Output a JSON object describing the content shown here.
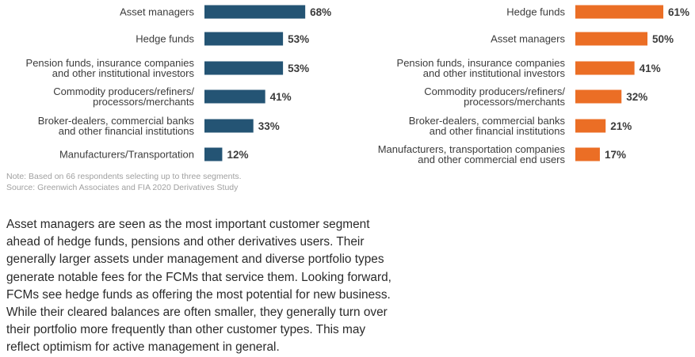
{
  "chart_data": [
    {
      "type": "bar",
      "orientation": "horizontal",
      "color": "#245474",
      "categories": [
        [
          "Asset managers"
        ],
        [
          "Hedge funds"
        ],
        [
          "Pension funds, insurance companies",
          "and other institutional investors"
        ],
        [
          "Commodity producers/refiners/",
          "processors/merchants"
        ],
        [
          "Broker-dealers, commercial banks",
          "and other financial institutions"
        ],
        [
          "Manufacturers/Transportation"
        ]
      ],
      "values": [
        68,
        53,
        53,
        41,
        33,
        12
      ],
      "value_labels": [
        "68%",
        "53%",
        "53%",
        "41%",
        "33%",
        "12%"
      ]
    },
    {
      "type": "bar",
      "orientation": "horizontal",
      "color": "#eb6e25",
      "categories": [
        [
          "Hedge funds"
        ],
        [
          "Asset managers"
        ],
        [
          "Pension funds, insurance companies",
          "and other institutional investors"
        ],
        [
          "Commodity producers/refiners/",
          "processors/merchants"
        ],
        [
          "Broker-dealers, commercial banks",
          "and other financial institutions"
        ],
        [
          "Manufacturers, transportation companies",
          "and other commercial end users"
        ]
      ],
      "values": [
        61,
        50,
        41,
        32,
        21,
        17
      ],
      "value_labels": [
        "61%",
        "50%",
        "41%",
        "32%",
        "21%",
        "17%"
      ]
    }
  ],
  "notes": {
    "note": "Note: Based on 66 respondents selecting up to three segments.",
    "source": "Source: Greenwich Associates and FIA 2020 Derivatives Study"
  },
  "body": {
    "lines": [
      "Asset managers are seen as the most important customer segment",
      "ahead of hedge funds, pensions and other derivatives users. Their",
      "generally larger assets under management and diverse portfolio types",
      "generate notable fees for the FCMs that service them. Looking forward,",
      "FCMs see hedge funds as offering the most potential for new business.",
      "While their cleared balances are often smaller, they generally turn over",
      "their portfolio more frequently than other customer types. This may",
      "reflect optimism for active management in general."
    ]
  }
}
